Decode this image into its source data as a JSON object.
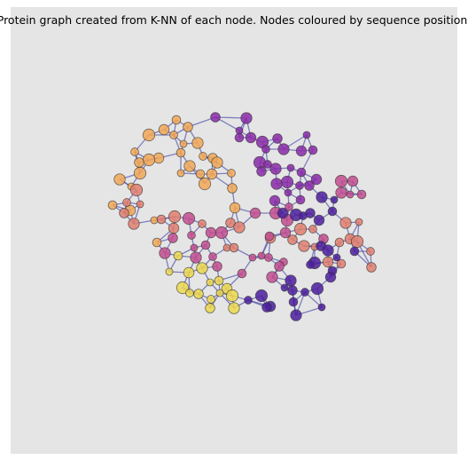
{
  "title": "Protein graph created from K-NN of each node. Nodes coloured by sequence position."
}
